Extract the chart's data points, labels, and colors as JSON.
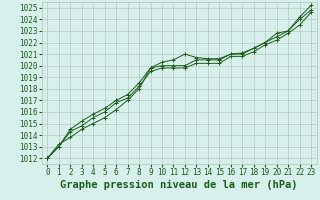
{
  "title": "Graphe pression niveau de la mer (hPa)",
  "bg_color": "#d8f0ec",
  "plot_bg_color": "#d8f0ec",
  "grid_color": "#b8c8c4",
  "line_color": "#1a5c1a",
  "marker_color": "#1a5c1a",
  "xlim": [
    -0.5,
    23.5
  ],
  "ylim": [
    1011.5,
    1025.5
  ],
  "yticks": [
    1012,
    1013,
    1014,
    1015,
    1016,
    1017,
    1018,
    1019,
    1020,
    1021,
    1022,
    1023,
    1024,
    1025
  ],
  "xticks": [
    0,
    1,
    2,
    3,
    4,
    5,
    6,
    7,
    8,
    9,
    10,
    11,
    12,
    13,
    14,
    15,
    16,
    17,
    18,
    19,
    20,
    21,
    22,
    23
  ],
  "series1": {
    "x": [
      0,
      1,
      2,
      3,
      4,
      5,
      6,
      7,
      8,
      9,
      10,
      11,
      12,
      13,
      14,
      15,
      16,
      17,
      18,
      19,
      20,
      21,
      22,
      23
    ],
    "y": [
      1012.0,
      1013.2,
      1013.8,
      1014.5,
      1015.0,
      1015.5,
      1016.2,
      1017.0,
      1018.0,
      1019.8,
      1020.3,
      1020.5,
      1021.0,
      1020.7,
      1020.6,
      1020.6,
      1021.0,
      1021.1,
      1021.5,
      1022.0,
      1022.8,
      1023.0,
      1024.2,
      1025.2
    ]
  },
  "series2": {
    "x": [
      0,
      1,
      2,
      3,
      4,
      5,
      6,
      7,
      8,
      9,
      10,
      11,
      12,
      13,
      14,
      15,
      16,
      17,
      18,
      19,
      20,
      21,
      22,
      23
    ],
    "y": [
      1012.0,
      1013.0,
      1014.5,
      1015.2,
      1015.8,
      1016.3,
      1017.0,
      1017.5,
      1018.5,
      1019.8,
      1020.0,
      1020.0,
      1020.0,
      1020.5,
      1020.5,
      1020.5,
      1021.0,
      1021.0,
      1021.5,
      1022.0,
      1022.5,
      1023.0,
      1024.0,
      1024.8
    ]
  },
  "series3": {
    "x": [
      0,
      1,
      2,
      3,
      4,
      5,
      6,
      7,
      8,
      9,
      10,
      11,
      12,
      13,
      14,
      15,
      16,
      17,
      18,
      19,
      20,
      21,
      22,
      23
    ],
    "y": [
      1012.0,
      1013.0,
      1014.3,
      1014.8,
      1015.5,
      1016.0,
      1016.8,
      1017.2,
      1018.2,
      1019.5,
      1019.8,
      1019.8,
      1019.8,
      1020.2,
      1020.2,
      1020.2,
      1020.8,
      1020.8,
      1021.2,
      1021.8,
      1022.2,
      1022.8,
      1023.5,
      1024.6
    ]
  },
  "tick_fontsize": 5.5,
  "title_fontsize": 7.5,
  "linewidth": 0.7,
  "markersize": 1.8
}
